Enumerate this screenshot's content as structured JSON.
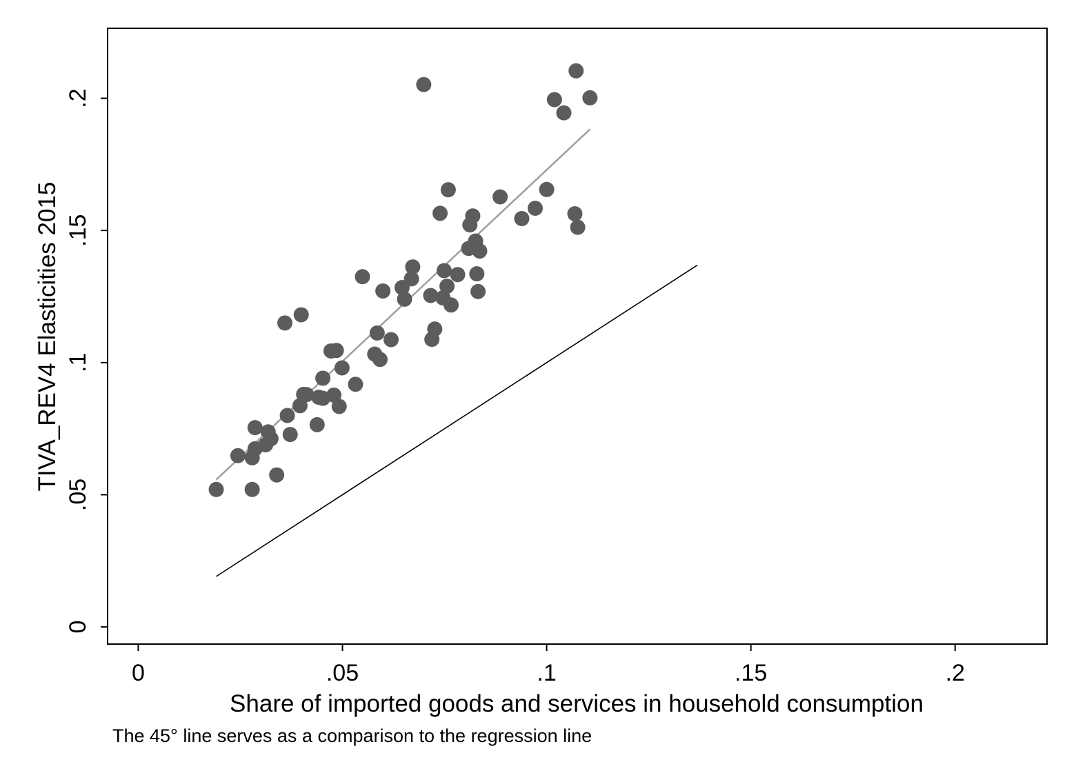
{
  "chart_data": {
    "type": "scatter",
    "xlabel": "Share of imported goods and services in household consumption",
    "ylabel": "TIVA_REV4 Elasticities 2015",
    "note": "The 45° line serves as a comparison to the regression line",
    "xlim": [
      -0.0075,
      0.2225
    ],
    "ylim": [
      -0.0065,
      0.2265
    ],
    "x_ticks": [
      0,
      0.05,
      0.1,
      0.15,
      0.2
    ],
    "x_tick_labels": [
      "0",
      ".05",
      ".1",
      ".15",
      ".2"
    ],
    "y_ticks": [
      0,
      0.05,
      0.1,
      0.15,
      0.2
    ],
    "y_tick_labels": [
      "0",
      ".05",
      ".1",
      ".15",
      ".2"
    ],
    "grid": false,
    "legend": "none",
    "colors": {
      "points": "#5c5c5c",
      "fit_line": "#a0a0a0",
      "ref_line": "#000000",
      "frame": "#000000"
    },
    "points": [
      [
        0.0191,
        0.052
      ],
      [
        0.0244,
        0.0648
      ],
      [
        0.0279,
        0.052
      ],
      [
        0.0279,
        0.064
      ],
      [
        0.0286,
        0.0674
      ],
      [
        0.0286,
        0.0754
      ],
      [
        0.0312,
        0.0689
      ],
      [
        0.0318,
        0.0738
      ],
      [
        0.0325,
        0.0712
      ],
      [
        0.0339,
        0.0575
      ],
      [
        0.0359,
        0.115
      ],
      [
        0.0365,
        0.08
      ],
      [
        0.0372,
        0.0728
      ],
      [
        0.0396,
        0.0837
      ],
      [
        0.0399,
        0.1181
      ],
      [
        0.0405,
        0.088
      ],
      [
        0.0412,
        0.0879
      ],
      [
        0.0438,
        0.0765
      ],
      [
        0.0442,
        0.0869
      ],
      [
        0.0452,
        0.0865
      ],
      [
        0.0452,
        0.0941
      ],
      [
        0.0472,
        0.1044
      ],
      [
        0.0479,
        0.0877
      ],
      [
        0.0485,
        0.1046
      ],
      [
        0.0492,
        0.0834
      ],
      [
        0.0499,
        0.098
      ],
      [
        0.0532,
        0.0918
      ],
      [
        0.0549,
        0.1325
      ],
      [
        0.0579,
        0.1032
      ],
      [
        0.0585,
        0.1112
      ],
      [
        0.0592,
        0.1012
      ],
      [
        0.0599,
        0.1271
      ],
      [
        0.0619,
        0.1087
      ],
      [
        0.0646,
        0.1284
      ],
      [
        0.0652,
        0.124
      ],
      [
        0.0669,
        0.1317
      ],
      [
        0.0672,
        0.1362
      ],
      [
        0.0699,
        0.2052
      ],
      [
        0.0716,
        0.1254
      ],
      [
        0.0719,
        0.1088
      ],
      [
        0.0726,
        0.1127
      ],
      [
        0.0739,
        0.1565
      ],
      [
        0.0746,
        0.1245
      ],
      [
        0.0749,
        0.1348
      ],
      [
        0.0756,
        0.1289
      ],
      [
        0.0759,
        0.1654
      ],
      [
        0.0766,
        0.1218
      ],
      [
        0.0782,
        0.1333
      ],
      [
        0.0809,
        0.1432
      ],
      [
        0.0812,
        0.1521
      ],
      [
        0.0819,
        0.1555
      ],
      [
        0.0826,
        0.146
      ],
      [
        0.0829,
        0.1336
      ],
      [
        0.0832,
        0.1269
      ],
      [
        0.0836,
        0.1422
      ],
      [
        0.0886,
        0.1627
      ],
      [
        0.0939,
        0.1545
      ],
      [
        0.0972,
        0.1584
      ],
      [
        0.1,
        0.1655
      ],
      [
        0.1019,
        0.1995
      ],
      [
        0.1042,
        0.1945
      ],
      [
        0.1069,
        0.1563
      ],
      [
        0.1072,
        0.2104
      ],
      [
        0.1076,
        0.1512
      ],
      [
        0.1106,
        0.2002
      ]
    ],
    "fit_line": [
      [
        0.0191,
        0.0557
      ],
      [
        0.1106,
        0.1883
      ]
    ],
    "reference_line": [
      [
        0.0191,
        0.0191
      ],
      [
        0.1369,
        0.1369
      ]
    ]
  }
}
